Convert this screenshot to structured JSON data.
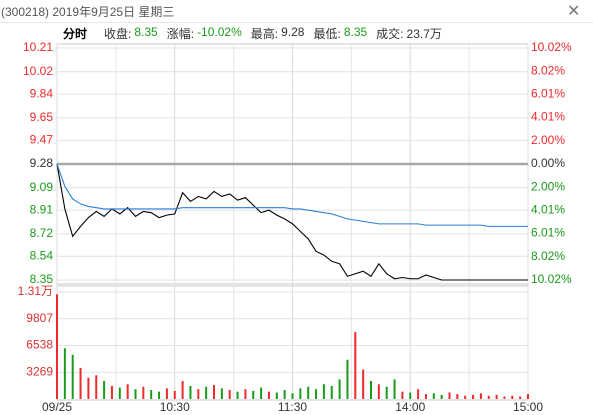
{
  "header": {
    "title": "(300218) 2019年9月25日 星期三",
    "info": [
      {
        "text": "分时",
        "color": "#000000"
      },
      {
        "text": "收盘:",
        "color": "#333333"
      },
      {
        "text": "8.35",
        "color": "#1a9a1a"
      },
      {
        "text": "涨幅:",
        "color": "#333333"
      },
      {
        "text": "-10.02%",
        "color": "#1a9a1a"
      },
      {
        "text": "最高:",
        "color": "#333333"
      },
      {
        "text": "9.28",
        "color": "#333333"
      },
      {
        "text": "最低:",
        "color": "#333333"
      },
      {
        "text": "8.35",
        "color": "#1a9a1a"
      },
      {
        "text": "成交:",
        "color": "#333333"
      },
      {
        "text": "23.7万",
        "color": "#333333"
      }
    ]
  },
  "chart_data": [
    {
      "type": "line",
      "up_color": "#ee2a2a",
      "down_color": "#1a9a1a",
      "flat_color": "#333333",
      "x": [
        0,
        4,
        8,
        12,
        16,
        20,
        24,
        28,
        32,
        36,
        40,
        44,
        48,
        52,
        56,
        60,
        64,
        68,
        72,
        76,
        80,
        84,
        88,
        92,
        96,
        100,
        104,
        108,
        112,
        116,
        120,
        124,
        128,
        132,
        136,
        140,
        144,
        148,
        152,
        156,
        160,
        164,
        168,
        172,
        176,
        180,
        184,
        188,
        192,
        196,
        200,
        204,
        208,
        212,
        216,
        220,
        224,
        228,
        232,
        236,
        240
      ],
      "xlim": [
        0,
        240
      ],
      "ylim": [
        8.35,
        10.21
      ],
      "yticks": [
        10.21,
        10.02,
        9.84,
        9.65,
        9.47,
        9.28,
        9.09,
        8.91,
        8.72,
        8.54,
        8.35
      ],
      "y2lim": [
        -10.02,
        10.02
      ],
      "y2ticks": [
        {
          "value": 10.02,
          "label": "10.02%"
        },
        {
          "value": 8.02,
          "label": "8.02%"
        },
        {
          "value": 6.01,
          "label": "6.01%"
        },
        {
          "value": 4.01,
          "label": "4.01%"
        },
        {
          "value": 2.0,
          "label": "2.00%"
        },
        {
          "value": 0,
          "label": "0.00%"
        },
        {
          "value": -2.0,
          "label": "2.00%"
        },
        {
          "value": -4.01,
          "label": "4.01%"
        },
        {
          "value": -6.01,
          "label": "6.01%"
        },
        {
          "value": -8.02,
          "label": "8.02%"
        },
        {
          "value": -10.02,
          "label": "10.02%"
        }
      ],
      "grid": true,
      "series": [
        {
          "name": "price",
          "color": "#000000",
          "values": [
            9.28,
            8.92,
            8.7,
            8.78,
            8.85,
            8.9,
            8.86,
            8.92,
            8.88,
            8.93,
            8.86,
            8.9,
            8.89,
            8.85,
            8.87,
            8.88,
            9.05,
            8.98,
            9.02,
            9.0,
            9.06,
            9.02,
            9.04,
            8.99,
            9.01,
            8.95,
            8.89,
            8.91,
            8.87,
            8.84,
            8.8,
            8.74,
            8.68,
            8.58,
            8.55,
            8.5,
            8.48,
            8.38,
            8.4,
            8.42,
            8.38,
            8.48,
            8.4,
            8.36,
            8.37,
            8.36,
            8.36,
            8.39,
            8.37,
            8.35,
            8.35,
            8.35,
            8.35,
            8.35,
            8.35,
            8.35,
            8.35,
            8.35,
            8.35,
            8.35,
            8.35
          ]
        },
        {
          "name": "average",
          "color": "#2b7fd8",
          "values": [
            9.28,
            9.1,
            9.0,
            8.96,
            8.94,
            8.93,
            8.92,
            8.92,
            8.92,
            8.92,
            8.92,
            8.92,
            8.92,
            8.92,
            8.92,
            8.92,
            8.93,
            8.93,
            8.93,
            8.93,
            8.93,
            8.93,
            8.93,
            8.93,
            8.93,
            8.93,
            8.93,
            8.93,
            8.93,
            8.93,
            8.92,
            8.92,
            8.91,
            8.9,
            8.89,
            8.88,
            8.86,
            8.84,
            8.83,
            8.82,
            8.81,
            8.8,
            8.8,
            8.8,
            8.8,
            8.8,
            8.8,
            8.79,
            8.79,
            8.79,
            8.79,
            8.79,
            8.79,
            8.79,
            8.79,
            8.78,
            8.78,
            8.78,
            8.78,
            8.78,
            8.78
          ]
        }
      ]
    },
    {
      "type": "bar",
      "tick_color": "#dd3030",
      "x": [
        0,
        4,
        8,
        12,
        16,
        20,
        24,
        28,
        32,
        36,
        40,
        44,
        48,
        52,
        56,
        60,
        64,
        68,
        72,
        76,
        80,
        84,
        88,
        92,
        96,
        100,
        104,
        108,
        112,
        116,
        120,
        124,
        128,
        132,
        136,
        140,
        144,
        148,
        152,
        156,
        160,
        164,
        168,
        172,
        176,
        180,
        184,
        188,
        192,
        196,
        200,
        204,
        208,
        212,
        216,
        220,
        224,
        228,
        232,
        236,
        240
      ],
      "xlim": [
        0,
        240
      ],
      "xticks": [
        {
          "value": 0,
          "label": "09/25"
        },
        {
          "value": 60,
          "label": "10:30"
        },
        {
          "value": 120,
          "label": "11:30"
        },
        {
          "value": 180,
          "label": "14:00"
        },
        {
          "value": 240,
          "label": "15:00"
        }
      ],
      "ylim": [
        0,
        13076
      ],
      "yticks": [
        {
          "value": 13076,
          "label": "1.31万"
        },
        9807,
        6538,
        3269
      ],
      "values": [
        12800,
        6200,
        5400,
        3800,
        2600,
        2900,
        2200,
        1600,
        1400,
        1800,
        1200,
        1500,
        1100,
        900,
        1300,
        1000,
        2200,
        1600,
        1200,
        1500,
        1700,
        1300,
        1100,
        900,
        1200,
        1000,
        1400,
        900,
        800,
        1100,
        700,
        1300,
        1500,
        1200,
        1800,
        1600,
        2400,
        4800,
        8200,
        3600,
        2200,
        1800,
        1500,
        2400,
        900,
        800,
        1200,
        600,
        700,
        500,
        800,
        600,
        400,
        500,
        700,
        400,
        500,
        300,
        400,
        300,
        600
      ]
    }
  ]
}
